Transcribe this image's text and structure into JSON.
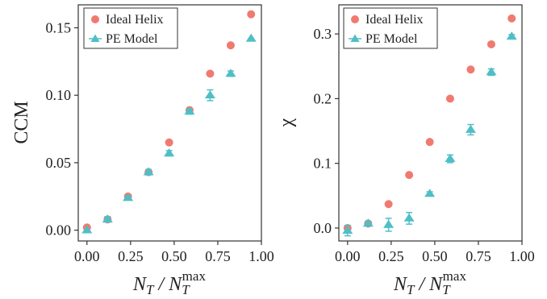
{
  "colors": {
    "ideal_helix": "#F07A6F",
    "pe_model": "#4FBFC6",
    "frame": "#333333",
    "tick_label": "#222222"
  },
  "chart_data": [
    {
      "type": "scatter",
      "xlabel": "N_T / N_T^max",
      "ylabel": "CCM",
      "xlim": [
        -0.05,
        1.0
      ],
      "ylim": [
        -0.008,
        0.167
      ],
      "xticks": [
        0.0,
        0.25,
        0.5,
        0.75,
        1.0
      ],
      "xtick_labels": [
        "0.00",
        "0.25",
        "0.50",
        "0.75",
        "1.00"
      ],
      "yticks": [
        0.0,
        0.05,
        0.1,
        0.15
      ],
      "ytick_labels": [
        "0.00",
        "0.05",
        "0.10",
        "0.15"
      ],
      "grid": false,
      "legend_position": "top-left",
      "series": [
        {
          "name": "Ideal Helix",
          "marker": "circle",
          "color": "#F07A6F",
          "x": [
            0.0,
            0.118,
            0.235,
            0.353,
            0.471,
            0.588,
            0.706,
            0.824,
            0.941
          ],
          "y": [
            0.002,
            0.008,
            0.025,
            0.043,
            0.065,
            0.089,
            0.116,
            0.137,
            0.16
          ],
          "err": [
            0,
            0,
            0,
            0,
            0,
            0,
            0,
            0,
            0
          ]
        },
        {
          "name": "PE Model",
          "marker": "triangle",
          "color": "#4FBFC6",
          "x": [
            0.0,
            0.118,
            0.235,
            0.353,
            0.471,
            0.588,
            0.706,
            0.824,
            0.941
          ],
          "y": [
            0.0,
            0.008,
            0.024,
            0.043,
            0.057,
            0.088,
            0.1,
            0.116,
            0.142
          ],
          "err": [
            0.0,
            0.002,
            0.001,
            0.002,
            0.002,
            0.002,
            0.004,
            0.002,
            0.0
          ]
        }
      ]
    },
    {
      "type": "scatter",
      "xlabel": "N_T / N_T^max",
      "ylabel": "χ",
      "xlim": [
        -0.05,
        1.0
      ],
      "ylim": [
        -0.02,
        0.345
      ],
      "xticks": [
        0.0,
        0.25,
        0.5,
        0.75,
        1.0
      ],
      "xtick_labels": [
        "0.00",
        "0.25",
        "0.50",
        "0.75",
        "1.00"
      ],
      "yticks": [
        0.0,
        0.1,
        0.2,
        0.3
      ],
      "ytick_labels": [
        "0.0",
        "0.1",
        "0.2",
        "0.3"
      ],
      "grid": false,
      "legend_position": "top-left",
      "series": [
        {
          "name": "Ideal Helix",
          "marker": "circle",
          "color": "#F07A6F",
          "x": [
            0.0,
            0.118,
            0.235,
            0.353,
            0.471,
            0.588,
            0.706,
            0.824,
            0.941
          ],
          "y": [
            0.0,
            0.007,
            0.037,
            0.082,
            0.133,
            0.2,
            0.245,
            0.284,
            0.324
          ],
          "err": [
            0,
            0,
            0,
            0,
            0,
            0,
            0,
            0,
            0
          ]
        },
        {
          "name": "PE Model",
          "marker": "triangle",
          "color": "#4FBFC6",
          "x": [
            0.0,
            0.118,
            0.235,
            0.353,
            0.471,
            0.588,
            0.706,
            0.824,
            0.941
          ],
          "y": [
            -0.004,
            0.007,
            0.005,
            0.015,
            0.053,
            0.107,
            0.152,
            0.241,
            0.296
          ],
          "err": [
            0.008,
            0.003,
            0.01,
            0.009,
            0.003,
            0.006,
            0.008,
            0.005,
            0.003
          ]
        }
      ]
    }
  ]
}
